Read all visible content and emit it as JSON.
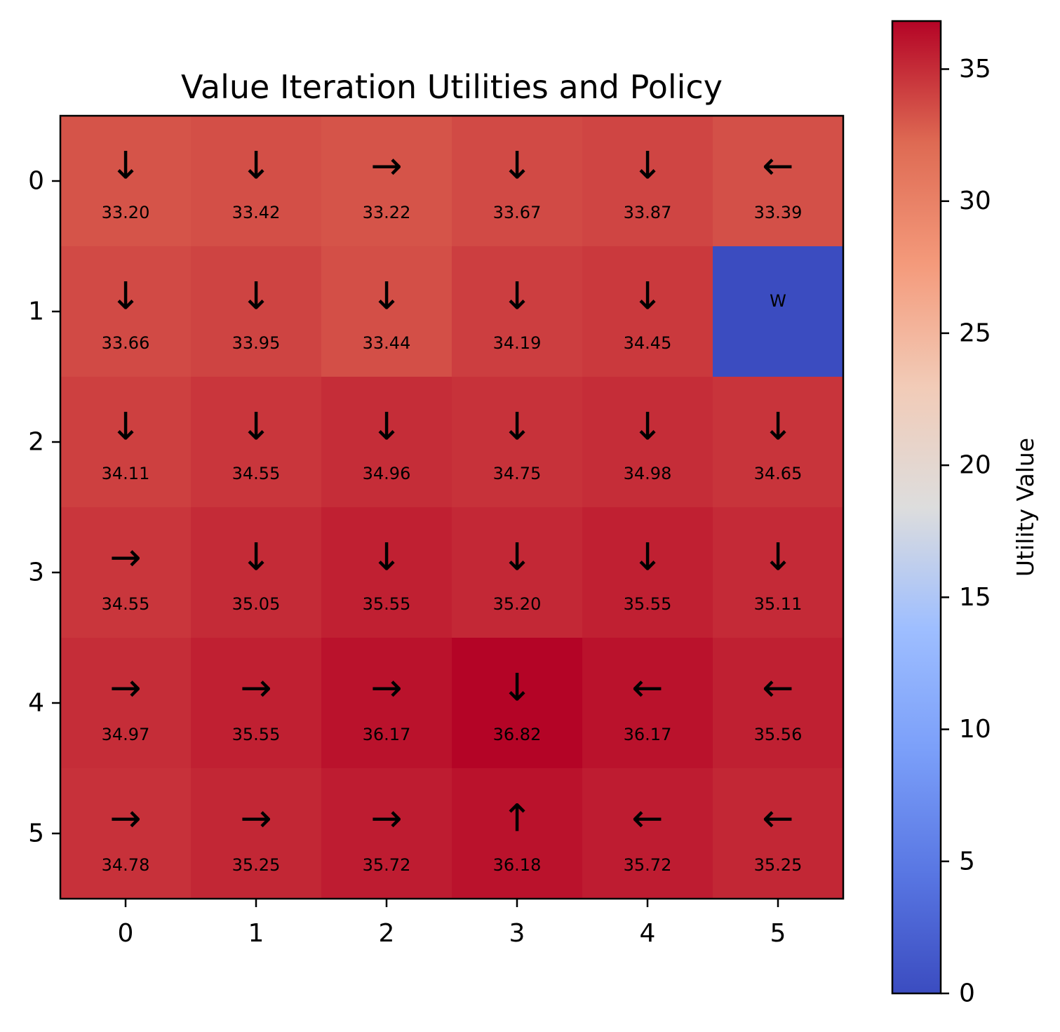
{
  "chart_data": {
    "type": "heatmap",
    "title": "Value Iteration Utilities and Policy",
    "x_ticks": [
      "0",
      "1",
      "2",
      "3",
      "4",
      "5"
    ],
    "y_ticks": [
      "0",
      "1",
      "2",
      "3",
      "4",
      "5"
    ],
    "values": [
      [
        33.2,
        33.42,
        33.22,
        33.67,
        33.87,
        33.39
      ],
      [
        33.66,
        33.95,
        33.44,
        34.19,
        34.45,
        0
      ],
      [
        34.11,
        34.55,
        34.96,
        34.75,
        34.98,
        34.65
      ],
      [
        34.55,
        35.05,
        35.55,
        35.2,
        35.55,
        35.11
      ],
      [
        34.97,
        35.55,
        36.17,
        36.82,
        36.17,
        35.56
      ],
      [
        34.78,
        35.25,
        35.72,
        36.18,
        35.72,
        35.25
      ]
    ],
    "labels": [
      [
        "33.20",
        "33.42",
        "33.22",
        "33.67",
        "33.87",
        "33.39"
      ],
      [
        "33.66",
        "33.95",
        "33.44",
        "34.19",
        "34.45",
        "W"
      ],
      [
        "34.11",
        "34.55",
        "34.96",
        "34.75",
        "34.98",
        "34.65"
      ],
      [
        "34.55",
        "35.05",
        "35.55",
        "35.20",
        "35.55",
        "35.11"
      ],
      [
        "34.97",
        "35.55",
        "36.17",
        "36.82",
        "36.17",
        "35.56"
      ],
      [
        "34.78",
        "35.25",
        "35.72",
        "36.18",
        "35.72",
        "35.25"
      ]
    ],
    "policy": [
      [
        "↓",
        "↓",
        "→",
        "↓",
        "↓",
        "←"
      ],
      [
        "↓",
        "↓",
        "↓",
        "↓",
        "↓",
        ""
      ],
      [
        "↓",
        "↓",
        "↓",
        "↓",
        "↓",
        "↓"
      ],
      [
        "→",
        "↓",
        "↓",
        "↓",
        "↓",
        "↓"
      ],
      [
        "→",
        "→",
        "→",
        "↓",
        "←",
        "←"
      ],
      [
        "→",
        "→",
        "→",
        "↑",
        "←",
        "←"
      ]
    ],
    "colormap": "coolwarm",
    "vmin": 0,
    "vmax": 36.82,
    "colorbar": {
      "label": "Utility Value",
      "ticks": [
        0,
        5,
        10,
        15,
        20,
        25,
        30,
        35
      ],
      "tick_labels": [
        "0",
        "5",
        "10",
        "15",
        "20",
        "25",
        "30",
        "35"
      ]
    }
  }
}
